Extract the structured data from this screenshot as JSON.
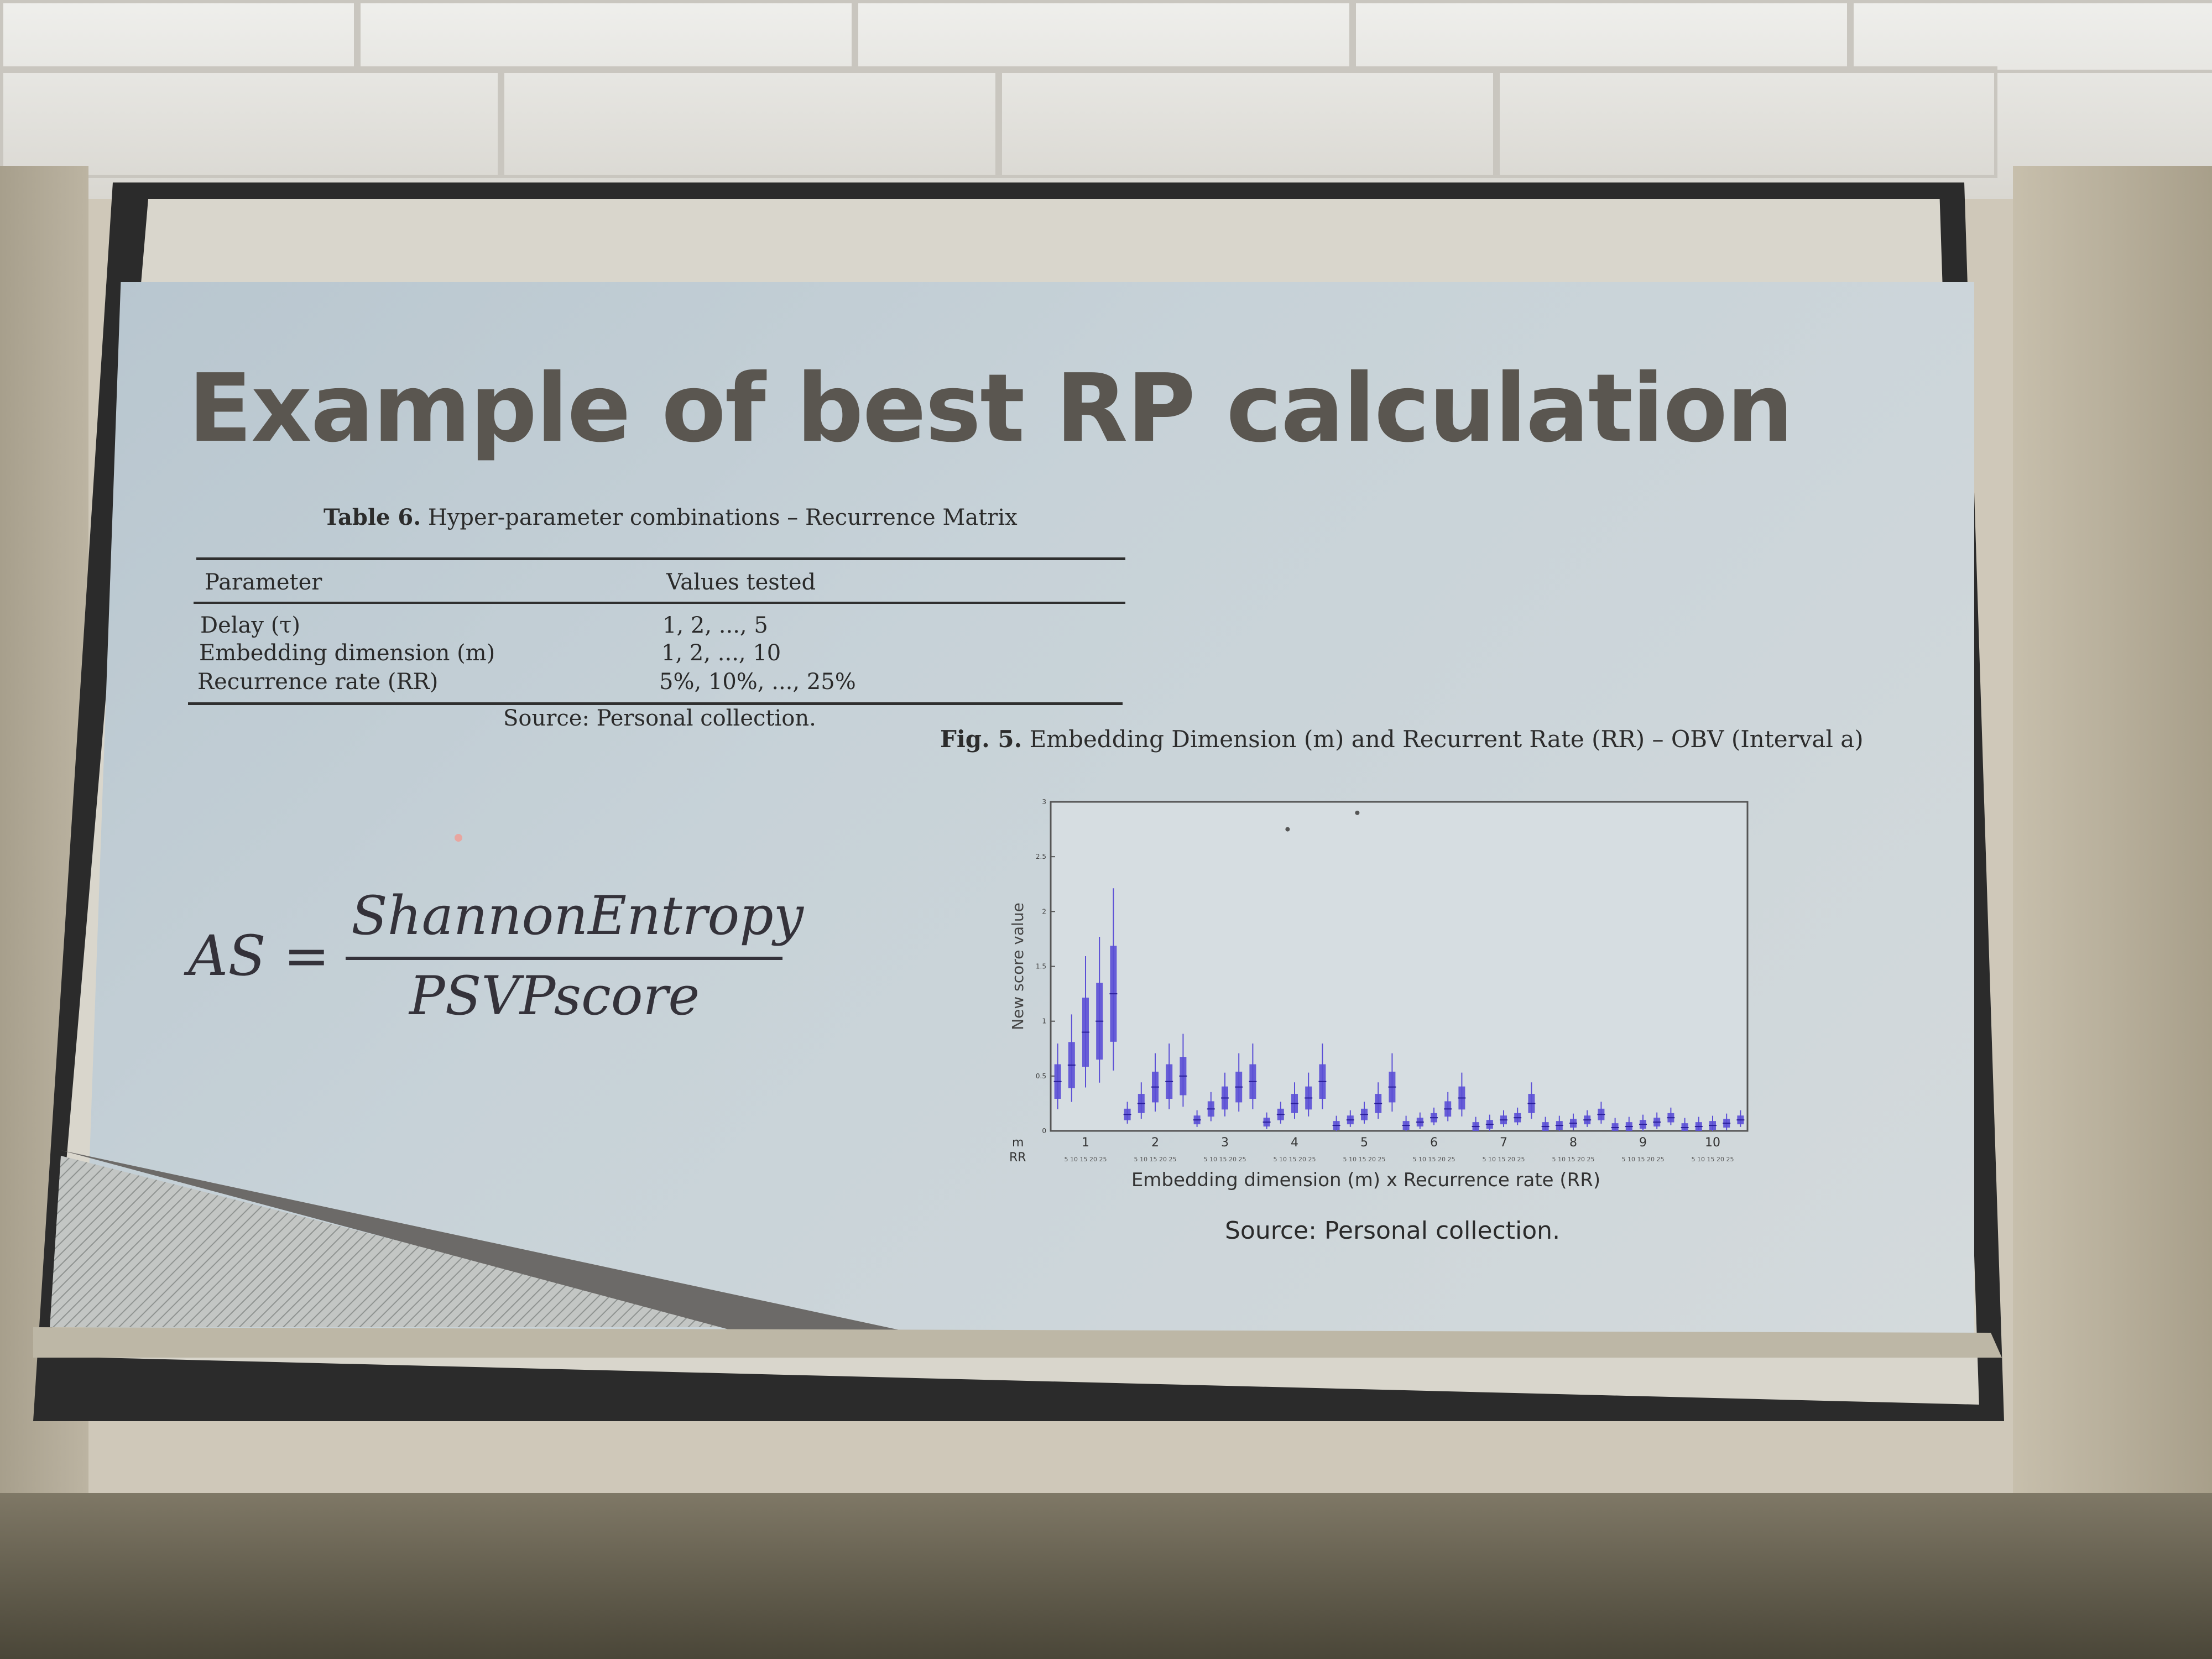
{
  "slide": {
    "title": "Example of best RP calculation",
    "table": {
      "caption_label": "Table 6.",
      "caption_text": " Hyper-parameter combinations – Recurrence Matrix",
      "headers": [
        "Parameter",
        "Values tested"
      ],
      "rows": [
        {
          "parameter": "Delay (τ)",
          "values": "1, 2, ..., 5"
        },
        {
          "parameter": "Embedding dimension (m)",
          "values": "1, 2, ..., 10"
        },
        {
          "parameter": "Recurrence rate (RR)",
          "values": "5%, 10%, ..., 25%"
        }
      ],
      "source": "Source: Personal collection."
    },
    "formula": {
      "lhs": "AS =",
      "numerator": "ShannonEntropy",
      "denominator": "PSVPscore"
    },
    "figure": {
      "caption_label": "Fig. 5.",
      "caption_text": " Embedding Dimension (m) and Recurrent Rate (RR) – OBV (Interval a)",
      "source": "Source: Personal collection."
    }
  },
  "chart_data": {
    "type": "box",
    "xlabel": "Embedding dimension (m) x Recurrence rate (RR)",
    "ylabel": "New score value",
    "ylim": [
      0,
      3
    ],
    "y_ticks": [
      "0",
      "0.5",
      "1",
      "1.5",
      "2",
      "2.5",
      "3"
    ],
    "m_label": "m",
    "rr_label": "RR",
    "m_values": [
      "1",
      "2",
      "3",
      "4",
      "5",
      "6",
      "7",
      "8",
      "9",
      "10"
    ],
    "rr_ticks": "5 10 15 20 25",
    "series": [
      {
        "m": "1",
        "medians": [
          0.45,
          0.6,
          0.9,
          1.0,
          1.25
        ]
      },
      {
        "m": "2",
        "medians": [
          0.15,
          0.25,
          0.4,
          0.45,
          0.5
        ]
      },
      {
        "m": "3",
        "medians": [
          0.1,
          0.2,
          0.3,
          0.4,
          0.45
        ]
      },
      {
        "m": "4",
        "medians": [
          0.08,
          0.15,
          0.25,
          0.3,
          0.45
        ]
      },
      {
        "m": "5",
        "medians": [
          0.05,
          0.1,
          0.15,
          0.25,
          0.4
        ]
      },
      {
        "m": "6",
        "medians": [
          0.05,
          0.08,
          0.12,
          0.2,
          0.3
        ]
      },
      {
        "m": "7",
        "medians": [
          0.04,
          0.06,
          0.1,
          0.12,
          0.25
        ]
      },
      {
        "m": "8",
        "medians": [
          0.04,
          0.05,
          0.07,
          0.1,
          0.15
        ]
      },
      {
        "m": "9",
        "medians": [
          0.03,
          0.04,
          0.06,
          0.08,
          0.12
        ]
      },
      {
        "m": "10",
        "medians": [
          0.03,
          0.04,
          0.05,
          0.07,
          0.1
        ]
      }
    ],
    "outliers_y": [
      2.75,
      2.9
    ],
    "box_color": "#5b4fd6"
  }
}
